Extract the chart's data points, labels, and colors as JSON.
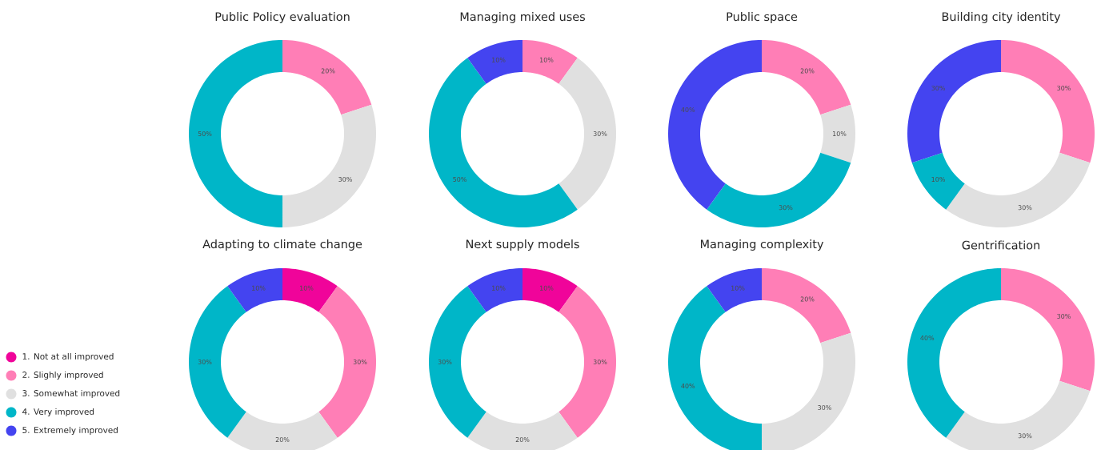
{
  "chart_data": [
    {
      "type": "donut",
      "title": "Public Policy evaluation",
      "legend": "left",
      "categories": [
        "1. Not at all improved",
        "2. Slighly improved",
        "3. Somewhat improved",
        "4. Very improved",
        "5. Extremely improved"
      ],
      "values": [
        0,
        20,
        30,
        50,
        0
      ],
      "value_labels": [
        null,
        "20%",
        "30%",
        "50%",
        null
      ],
      "colors": [
        "#f0049a",
        "#ff7eb6",
        "#e0e0e0",
        "#00b6c8",
        "#4444f0"
      ]
    },
    {
      "type": "donut",
      "title": "Managing mixed uses",
      "values": [
        0,
        10,
        30,
        50,
        10
      ],
      "value_labels": [
        null,
        "10%",
        "30%",
        "50%",
        "10%"
      ],
      "colors": [
        "#f0049a",
        "#ff7eb6",
        "#e0e0e0",
        "#00b6c8",
        "#4444f0"
      ]
    },
    {
      "type": "donut",
      "title": "Public space",
      "values": [
        0,
        20,
        10,
        30,
        40
      ],
      "value_labels": [
        null,
        "20%",
        "10%",
        "30%",
        "40%"
      ],
      "colors": [
        "#f0049a",
        "#ff7eb6",
        "#e0e0e0",
        "#00b6c8",
        "#4444f0"
      ]
    },
    {
      "type": "donut",
      "title": "Building city identity",
      "values": [
        0,
        30,
        30,
        10,
        30
      ],
      "value_labels": [
        null,
        "30%",
        "30%",
        "10%",
        "30%"
      ],
      "colors": [
        "#f0049a",
        "#ff7eb6",
        "#e0e0e0",
        "#00b6c8",
        "#4444f0"
      ]
    },
    {
      "type": "donut",
      "title": "Adapting to climate change",
      "values": [
        10,
        30,
        20,
        30,
        10
      ],
      "value_labels": [
        "10%",
        "30%",
        "20%",
        "30%",
        "10%"
      ],
      "colors": [
        "#f0049a",
        "#ff7eb6",
        "#e0e0e0",
        "#00b6c8",
        "#4444f0"
      ]
    },
    {
      "type": "donut",
      "title": "Next supply models",
      "values": [
        10,
        30,
        20,
        30,
        10
      ],
      "value_labels": [
        "10%",
        "30%",
        "20%",
        "30%",
        "10%"
      ],
      "colors": [
        "#f0049a",
        "#ff7eb6",
        "#e0e0e0",
        "#00b6c8",
        "#4444f0"
      ]
    },
    {
      "type": "donut",
      "title": "Managing complexity",
      "values": [
        0,
        20,
        30,
        40,
        10
      ],
      "value_labels": [
        null,
        "20%",
        "30%",
        "40%",
        "10%"
      ],
      "colors": [
        "#f0049a",
        "#ff7eb6",
        "#e0e0e0",
        "#00b6c8",
        "#4444f0"
      ]
    },
    {
      "type": "donut",
      "title": "Gentrification",
      "values": [
        0,
        30,
        30,
        40,
        0
      ],
      "value_labels": [
        null,
        "30%",
        "30%",
        "40%",
        null
      ],
      "colors": [
        "#f0049a",
        "#ff7eb6",
        "#e0e0e0",
        "#00b6c8",
        "#4444f0"
      ]
    }
  ]
}
